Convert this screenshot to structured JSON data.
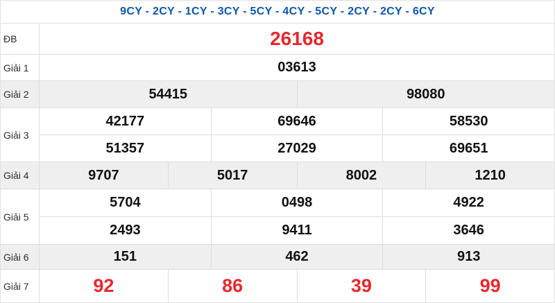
{
  "header": {
    "title": "9CY - 2CY - 1CY - 3CY - 5CY - 4CY - 5CY - 2CY - 2CY - 6CY"
  },
  "colors": {
    "header_blue": "#0d57ab",
    "highlight_red": "#e8282d",
    "shaded_row_bg": "#efefef",
    "border": "#dddddd",
    "number_black": "#111111"
  },
  "prizes": [
    {
      "label": "ĐB",
      "rows": [
        [
          "26168"
        ]
      ]
    },
    {
      "label": "Giải 1",
      "rows": [
        [
          "03613"
        ]
      ]
    },
    {
      "label": "Giải 2",
      "rows": [
        [
          "54415",
          "98080"
        ]
      ]
    },
    {
      "label": "Giải 3",
      "rows": [
        [
          "42177",
          "69646",
          "58530"
        ],
        [
          "51357",
          "27029",
          "69651"
        ]
      ]
    },
    {
      "label": "Giải 4",
      "rows": [
        [
          "9707",
          "5017",
          "8002",
          "1210"
        ]
      ]
    },
    {
      "label": "Giải 5",
      "rows": [
        [
          "5704",
          "0498",
          "4922"
        ],
        [
          "2493",
          "9411",
          "3646"
        ]
      ]
    },
    {
      "label": "Giải 6",
      "rows": [
        [
          "151",
          "462",
          "913"
        ]
      ]
    },
    {
      "label": "Giải 7",
      "rows": [
        [
          "92",
          "86",
          "39",
          "99"
        ]
      ]
    }
  ]
}
